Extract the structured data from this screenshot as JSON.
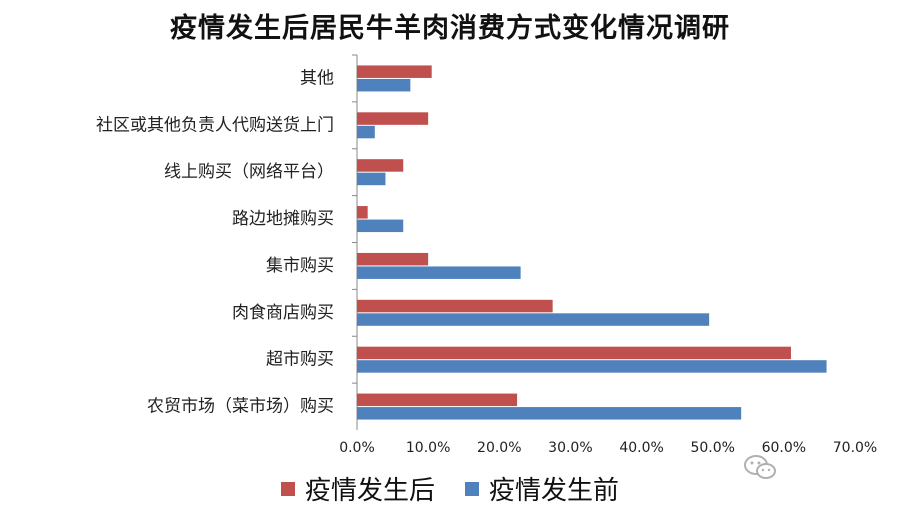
{
  "chart_data": {
    "type": "bar",
    "orientation": "horizontal",
    "title": "疫情发生后居民牛羊肉消费方式变化情况调研",
    "categories": [
      "其他",
      "社区或其他负责人代购送货上门",
      "线上购买（网络平台）",
      "路边地摊购买",
      "集市购买",
      "肉食商店购买",
      "超市购买",
      "农贸市场（菜市场）购买"
    ],
    "series": [
      {
        "name": "疫情发生后",
        "color": "#c0504d",
        "values": [
          10.5,
          10.0,
          6.5,
          1.5,
          10.0,
          27.5,
          61.0,
          22.5
        ]
      },
      {
        "name": "疫情发生前",
        "color": "#4f81bd",
        "values": [
          7.5,
          2.5,
          4.0,
          6.5,
          23.0,
          49.5,
          66.0,
          54.0
        ]
      }
    ],
    "xlim": [
      0,
      70
    ],
    "xticks": [
      "0.0%",
      "10.0%",
      "20.0%",
      "30.0%",
      "40.0%",
      "50.0%",
      "60.0%",
      "70.0%"
    ],
    "grid": false,
    "legend_position": "bottom",
    "xlabel": "",
    "ylabel": ""
  }
}
